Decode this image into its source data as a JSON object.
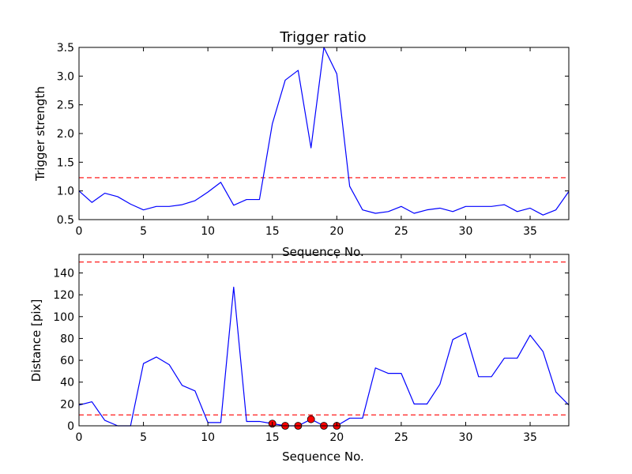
{
  "chart_data": [
    {
      "type": "line",
      "title": "Trigger ratio",
      "xlabel": "Sequence No.",
      "ylabel": "Trigger strength",
      "xlim": [
        0,
        38
      ],
      "ylim": [
        0.5,
        3.5
      ],
      "xticks": [
        0,
        5,
        10,
        15,
        20,
        25,
        30,
        35
      ],
      "yticks": [
        0.5,
        1.0,
        1.5,
        2.0,
        2.5,
        3.0,
        3.5
      ],
      "ytick_labels": [
        "0.5",
        "1.0",
        "1.5",
        "2.0",
        "2.5",
        "3.0",
        "3.5"
      ],
      "grid": false,
      "colors": {
        "line": "#0000ff",
        "threshold": "#ff0000"
      },
      "x": [
        0,
        1,
        2,
        3,
        4,
        5,
        6,
        7,
        8,
        9,
        10,
        11,
        12,
        13,
        14,
        15,
        16,
        17,
        18,
        19,
        20,
        21,
        22,
        23,
        24,
        25,
        26,
        27,
        28,
        29,
        30,
        31,
        32,
        33,
        34,
        35,
        36,
        37,
        38
      ],
      "series": [
        {
          "values": [
            1.0,
            0.8,
            0.96,
            0.9,
            0.77,
            0.67,
            0.73,
            0.73,
            0.76,
            0.83,
            0.98,
            1.15,
            0.75,
            0.85,
            0.85,
            2.17,
            2.93,
            3.1,
            1.75,
            3.5,
            3.04,
            1.08,
            0.67,
            0.61,
            0.64,
            0.73,
            0.61,
            0.67,
            0.7,
            0.64,
            0.73,
            0.73,
            0.73,
            0.76,
            0.64,
            0.7,
            0.58,
            0.67,
            0.99
          ]
        }
      ],
      "threshold_lines": [
        1.23
      ]
    },
    {
      "type": "line",
      "title": "",
      "xlabel": "Sequence No.",
      "ylabel": "Distance [pix]",
      "xlim": [
        0,
        38
      ],
      "ylim": [
        0,
        157
      ],
      "xticks": [
        0,
        5,
        10,
        15,
        20,
        25,
        30,
        35
      ],
      "yticks": [
        0,
        20,
        40,
        60,
        80,
        100,
        120,
        140
      ],
      "ytick_labels": [
        "0",
        "20",
        "40",
        "60",
        "80",
        "100",
        "120",
        "140"
      ],
      "grid": false,
      "colors": {
        "line": "#0000ff",
        "threshold": "#ff0000",
        "marker": "#ff0000"
      },
      "x": [
        0,
        1,
        2,
        3,
        4,
        5,
        6,
        7,
        8,
        9,
        10,
        11,
        12,
        13,
        14,
        15,
        16,
        17,
        18,
        19,
        20,
        21,
        22,
        23,
        24,
        25,
        26,
        27,
        28,
        29,
        30,
        31,
        32,
        33,
        34,
        35,
        36,
        37,
        38
      ],
      "series": [
        {
          "values": [
            19,
            22,
            5,
            0,
            0,
            57,
            63,
            56,
            37,
            32,
            3,
            3,
            127,
            4,
            4,
            2,
            0,
            0,
            6,
            0,
            0,
            7,
            7,
            53,
            48,
            48,
            20,
            20,
            38,
            79,
            85,
            45,
            45,
            62,
            62,
            83,
            68,
            31,
            19
          ]
        }
      ],
      "highlight_points": [
        {
          "x": 15,
          "y": 2
        },
        {
          "x": 16,
          "y": 0
        },
        {
          "x": 17,
          "y": 0
        },
        {
          "x": 18,
          "y": 6
        },
        {
          "x": 19,
          "y": 0
        },
        {
          "x": 20,
          "y": 0
        }
      ],
      "threshold_lines": [
        10,
        150
      ]
    }
  ]
}
